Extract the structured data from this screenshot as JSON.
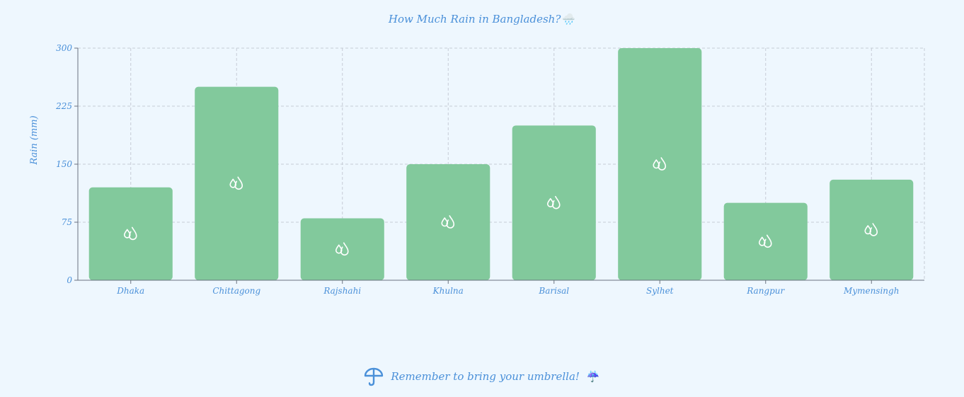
{
  "chart_data": {
    "type": "bar",
    "title": "How Much Rain in Bangladesh?",
    "title_emoji": "🌧️",
    "ylabel": "Rain (mm)",
    "xlabel": "",
    "categories": [
      "Dhaka",
      "Chittagong",
      "Rajshahi",
      "Khulna",
      "Barisal",
      "Sylhet",
      "Rangpur",
      "Mymensingh"
    ],
    "values": [
      120,
      250,
      80,
      150,
      200,
      300,
      100,
      130
    ],
    "ylim": [
      0,
      300
    ],
    "yticks": [
      "0",
      "75",
      "150",
      "225",
      "300"
    ],
    "grid": true,
    "bar_color": "#82c99c",
    "text_color": "#4a90d9",
    "bar_icon": "raindrops-icon"
  },
  "footer": {
    "text": "Remember to bring your umbrella!",
    "icon": "umbrella-icon",
    "emoji": "☔"
  }
}
